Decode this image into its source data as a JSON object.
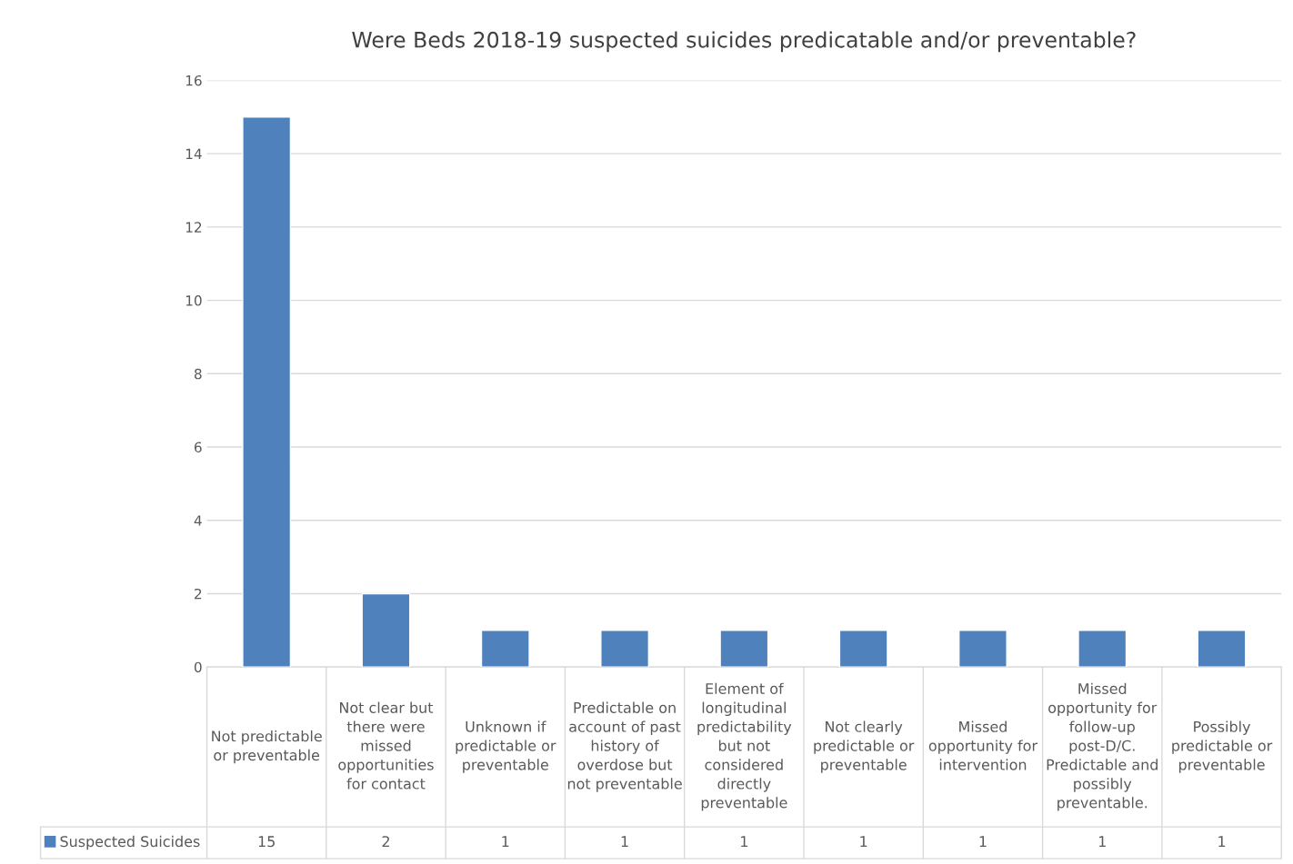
{
  "chart_data": {
    "type": "bar",
    "title": "Were Beds 2018-19 suspected suicides predicatable and/or preventable?",
    "categories": [
      "Not predictable or preventable",
      "Not clear but there were missed opportunities for contact",
      "Unknown if predictable or preventable",
      "Predictable on account of past history of overdose but not preventable",
      "Element of longitudinal predictability but not considered directly preventable",
      "Not clearly predictable or preventable",
      "Missed opportunity for intervention",
      "Missed opportunity for follow-up post-D/C. Predictable and possibly preventable.",
      "Possibly predictable or preventable"
    ],
    "series": [
      {
        "name": "Suspected Suicides",
        "color": "#4f81bd",
        "values": [
          15,
          2,
          1,
          1,
          1,
          1,
          1,
          1,
          1
        ]
      }
    ],
    "ylim": [
      0,
      16
    ],
    "yticks": [
      0,
      2,
      4,
      6,
      8,
      10,
      12,
      14,
      16
    ],
    "grid": "y",
    "legend": "bottom",
    "data_labels": true
  }
}
